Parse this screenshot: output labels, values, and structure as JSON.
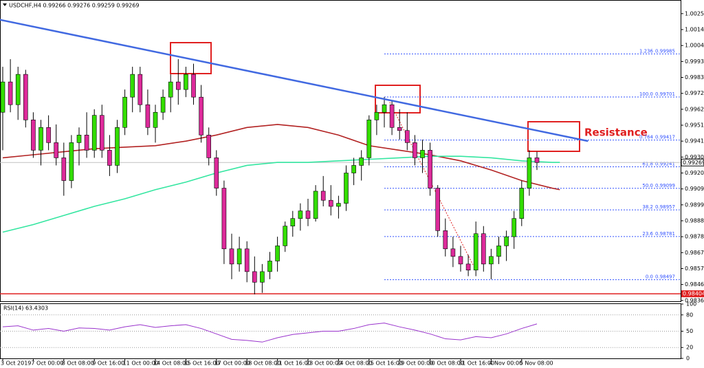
{
  "chart_data": {
    "type": "candlestick",
    "title": "USDCHF,H4 0.99266 0.99276 0.99259 0.99269",
    "categories": [
      "3 Oct 2019",
      null,
      null,
      null,
      "7 Oct 00:00",
      null,
      null,
      null,
      "8 Oct 08:00",
      null,
      null,
      null,
      "9 Oct 16:00",
      null,
      null,
      null,
      "11 Oct 00:00",
      null,
      null,
      null,
      "14 Oct 08:00",
      null,
      null,
      null,
      "15 Oct 16:00",
      null,
      null,
      null,
      "17 Oct 00:00",
      null,
      null,
      null,
      "18 Oct 08:00",
      null,
      null,
      null,
      "21 Oct 16:00",
      null,
      null,
      null,
      "23 Oct 00:00",
      null,
      null,
      null,
      "24 Oct 08:00",
      null,
      null,
      null,
      "25 Oct 16:00",
      null,
      null,
      null,
      "29 Oct 00:00",
      null,
      null,
      null,
      "30 Oct 08:00",
      null,
      null,
      null,
      "31 Oct 16:00",
      null,
      null,
      null,
      "4 Nov 00:00",
      null,
      null,
      null,
      "5 Nov 08:00",
      null,
      null
    ],
    "open": [
      0.996,
      0.998,
      0.9965,
      0.9985,
      0.9955,
      0.9935,
      0.995,
      0.994,
      0.993,
      0.9915,
      0.994,
      0.9945,
      0.9935,
      0.9958,
      0.9935,
      0.9925,
      0.995,
      0.997,
      0.9985,
      0.9965,
      0.995,
      0.996,
      0.997,
      0.998,
      0.9975,
      0.9985,
      0.997,
      0.9945,
      0.993,
      0.991,
      0.987,
      0.986,
      0.987,
      0.9855,
      0.9848,
      0.9855,
      0.9862,
      0.9872,
      0.9885,
      0.989,
      0.9895,
      0.989,
      0.9908,
      0.9902,
      0.9898,
      0.99,
      0.992,
      0.9925,
      0.993,
      0.9955,
      0.996,
      0.9965,
      0.995,
      0.9948,
      0.994,
      0.993,
      0.9935,
      0.991,
      0.9882,
      0.987,
      0.9865,
      0.986,
      0.9856,
      0.988,
      0.986,
      0.9865,
      0.9872,
      0.9878,
      0.989,
      0.991,
      0.993
    ],
    "high": [
      0.999,
      0.9995,
      0.999,
      0.9988,
      0.996,
      0.9955,
      0.9958,
      0.9952,
      0.994,
      0.9945,
      0.995,
      0.996,
      0.9962,
      0.9965,
      0.9945,
      0.9955,
      0.9975,
      0.999,
      0.999,
      0.9975,
      0.9965,
      0.9975,
      0.9985,
      0.9995,
      0.999,
      0.9992,
      0.9978,
      0.995,
      0.9935,
      0.9915,
      0.988,
      0.9878,
      0.9875,
      0.9865,
      0.986,
      0.9868,
      0.9878,
      0.9888,
      0.9895,
      0.99,
      0.9903,
      0.9912,
      0.9918,
      0.9912,
      0.9905,
      0.9925,
      0.993,
      0.9935,
      0.9958,
      0.9965,
      0.997,
      0.9968,
      0.9962,
      0.996,
      0.9945,
      0.9942,
      0.994,
      0.9912,
      0.989,
      0.9878,
      0.9872,
      0.9866,
      0.9888,
      0.9885,
      0.987,
      0.9878,
      0.9882,
      0.9895,
      0.9915,
      0.9935,
      0.9934
    ],
    "low": [
      0.9935,
      0.996,
      0.9955,
      0.995,
      0.993,
      0.9925,
      0.9935,
      0.9925,
      0.9905,
      0.991,
      0.9925,
      0.993,
      0.993,
      0.993,
      0.9918,
      0.992,
      0.9945,
      0.996,
      0.996,
      0.9945,
      0.994,
      0.9955,
      0.996,
      0.9965,
      0.997,
      0.9965,
      0.994,
      0.9925,
      0.9905,
      0.986,
      0.985,
      0.9855,
      0.9848,
      0.984,
      0.9841,
      0.985,
      0.9855,
      0.9868,
      0.9878,
      0.9882,
      0.9885,
      0.9888,
      0.9898,
      0.9892,
      0.989,
      0.9895,
      0.9912,
      0.9915,
      0.9925,
      0.9945,
      0.995,
      0.9945,
      0.9942,
      0.9935,
      0.9925,
      0.992,
      0.9905,
      0.9878,
      0.9865,
      0.9858,
      0.9855,
      0.9852,
      0.9852,
      0.9855,
      0.985,
      0.986,
      0.9862,
      0.987,
      0.9885,
      0.9905,
      0.9922
    ],
    "close": [
      0.998,
      0.9965,
      0.9985,
      0.9955,
      0.9935,
      0.995,
      0.994,
      0.993,
      0.9915,
      0.994,
      0.9945,
      0.9935,
      0.9958,
      0.9935,
      0.9925,
      0.995,
      0.997,
      0.9985,
      0.9965,
      0.995,
      0.996,
      0.997,
      0.998,
      0.9975,
      0.9985,
      0.997,
      0.9945,
      0.993,
      0.991,
      0.987,
      0.986,
      0.987,
      0.9855,
      0.9848,
      0.9855,
      0.9862,
      0.9872,
      0.9885,
      0.989,
      0.9895,
      0.989,
      0.9908,
      0.9902,
      0.9898,
      0.99,
      0.992,
      0.9925,
      0.993,
      0.9955,
      0.996,
      0.9965,
      0.995,
      0.9948,
      0.994,
      0.993,
      0.9935,
      0.991,
      0.9882,
      0.987,
      0.9865,
      0.986,
      0.9856,
      0.988,
      0.986,
      0.9865,
      0.9872,
      0.9878,
      0.989,
      0.991,
      0.993,
      0.99269
    ],
    "up_color": "#33dd00",
    "down_color": "#dd2a9a",
    "ylim": [
      0.9835,
      1.0034
    ],
    "yticks": [
      {
        "value": 1.0025,
        "label": "1.00250"
      },
      {
        "value": 1.00145,
        "label": "1.00145"
      },
      {
        "value": 1.0004,
        "label": "1.00040"
      },
      {
        "value": 0.99935,
        "label": "0.99935"
      },
      {
        "value": 0.9983,
        "label": "0.99830"
      },
      {
        "value": 0.99725,
        "label": "0.99725"
      },
      {
        "value": 0.9962,
        "label": "0.99620"
      },
      {
        "value": 0.99515,
        "label": "0.99515"
      },
      {
        "value": 0.9941,
        "label": "0.99410"
      },
      {
        "value": 0.99305,
        "label": "0.99305"
      },
      {
        "value": 0.992,
        "label": "0.99200"
      },
      {
        "value": 0.99095,
        "label": "0.99095"
      },
      {
        "value": 0.9899,
        "label": "0.98990"
      },
      {
        "value": 0.98885,
        "label": "0.98885"
      },
      {
        "value": 0.9878,
        "label": "0.98780"
      },
      {
        "value": 0.98675,
        "label": "0.98675"
      },
      {
        "value": 0.9857,
        "label": "0.98570"
      },
      {
        "value": 0.98465,
        "label": "0.98465"
      },
      {
        "value": 0.9836,
        "label": "0.98360"
      }
    ],
    "series": [
      {
        "color": "#b22222",
        "x": [
          0,
          4,
          8,
          12,
          16,
          20,
          24,
          28,
          32,
          36,
          40,
          44,
          48,
          52,
          56,
          60,
          64,
          68,
          72,
          73
        ],
        "values": [
          0.993,
          0.9932,
          0.9934,
          0.9936,
          0.9937,
          0.9938,
          0.9941,
          0.9945,
          0.995,
          0.9952,
          0.995,
          0.9945,
          0.9938,
          0.9935,
          0.9932,
          0.9928,
          0.9922,
          0.9915,
          0.991,
          0.9909
        ]
      },
      {
        "color": "#33e6a0",
        "x": [
          0,
          4,
          8,
          12,
          16,
          20,
          24,
          28,
          32,
          36,
          40,
          44,
          48,
          52,
          56,
          60,
          64,
          68,
          72,
          73
        ],
        "values": [
          0.9881,
          0.9886,
          0.9892,
          0.9898,
          0.9903,
          0.9909,
          0.9914,
          0.992,
          0.9925,
          0.9927,
          0.9927,
          0.9928,
          0.9929,
          0.993,
          0.9931,
          0.9931,
          0.993,
          0.9928,
          0.9927,
          0.9927
        ]
      }
    ],
    "trendline": {
      "color": "#4169e1",
      "x": [
        -0.4,
        76.7
      ],
      "values": [
        1.0021,
        0.9941
      ]
    },
    "fib_start_x": 50,
    "fib_levels": [
      {
        "ratio": "1.236",
        "value": 0.99985
      },
      {
        "ratio": "100.0",
        "value": 0.99701
      },
      {
        "ratio": "0.764",
        "value": 0.99417
      },
      {
        "ratio": "61.8",
        "value": 0.99241
      },
      {
        "ratio": "50.0",
        "value": 0.99099
      },
      {
        "ratio": "38.2",
        "value": 0.98957
      },
      {
        "ratio": "23.6",
        "value": 0.98781
      },
      {
        "ratio": "0.0",
        "value": 0.98497
      }
    ],
    "support": {
      "value": 0.98404,
      "label": "0.98404"
    },
    "last_price": {
      "value": 0.99269,
      "label": "0.99269"
    },
    "annotation": "Resistance",
    "rsi": {
      "title": "RSI(14) 63.4303",
      "color": "#9932cc",
      "ylim": [
        0,
        100
      ],
      "yticks": [
        100,
        80,
        50,
        20,
        0
      ],
      "x": [
        0,
        2,
        4,
        6,
        8,
        10,
        12,
        14,
        16,
        18,
        20,
        22,
        24,
        26,
        28,
        30,
        32,
        34,
        36,
        38,
        40,
        42,
        44,
        46,
        48,
        50,
        52,
        54,
        56,
        58,
        60,
        62,
        64,
        66,
        68,
        70
      ],
      "values": [
        58,
        60,
        52,
        55,
        50,
        56,
        55,
        52,
        58,
        62,
        57,
        60,
        62,
        55,
        45,
        35,
        33,
        30,
        38,
        44,
        47,
        50,
        50,
        55,
        62,
        65,
        58,
        52,
        45,
        36,
        34,
        40,
        38,
        45,
        55,
        63.4303
      ]
    }
  }
}
